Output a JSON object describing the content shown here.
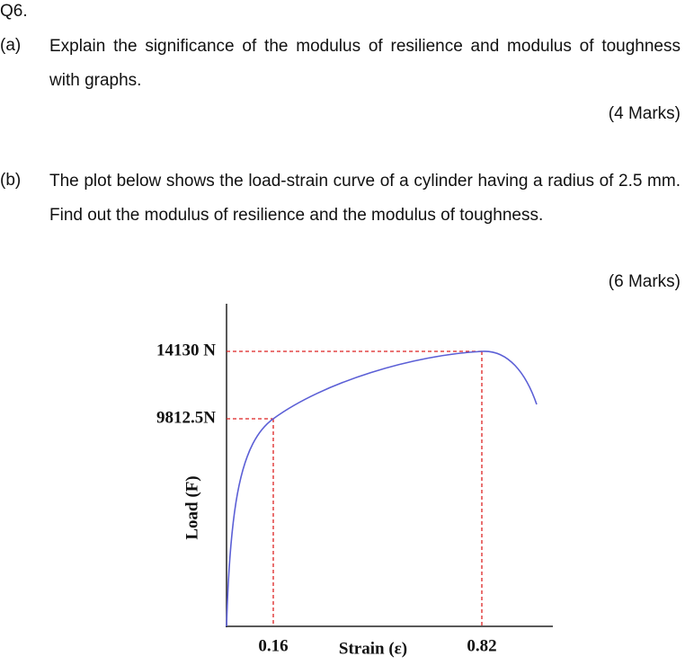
{
  "question": {
    "number": "Q6.",
    "parts": [
      {
        "label": "(a)",
        "text": "Explain the significance of the modulus of resilience and modulus of toughness with graphs.",
        "marks": "(4 Marks)"
      },
      {
        "label": "(b)",
        "text": "The plot below shows the load-strain curve of a cylinder having a radius of 2.5 mm. Find out the modulus of resilience and the modulus of toughness.",
        "marks": "(6 Marks)"
      }
    ]
  },
  "figure": {
    "y_label": "Load (F)",
    "x_label": "Strain (ε)",
    "y_ticks": [
      "14130 N",
      "9812.5N"
    ],
    "x_ticks": [
      "0.16",
      "0.82"
    ]
  }
}
